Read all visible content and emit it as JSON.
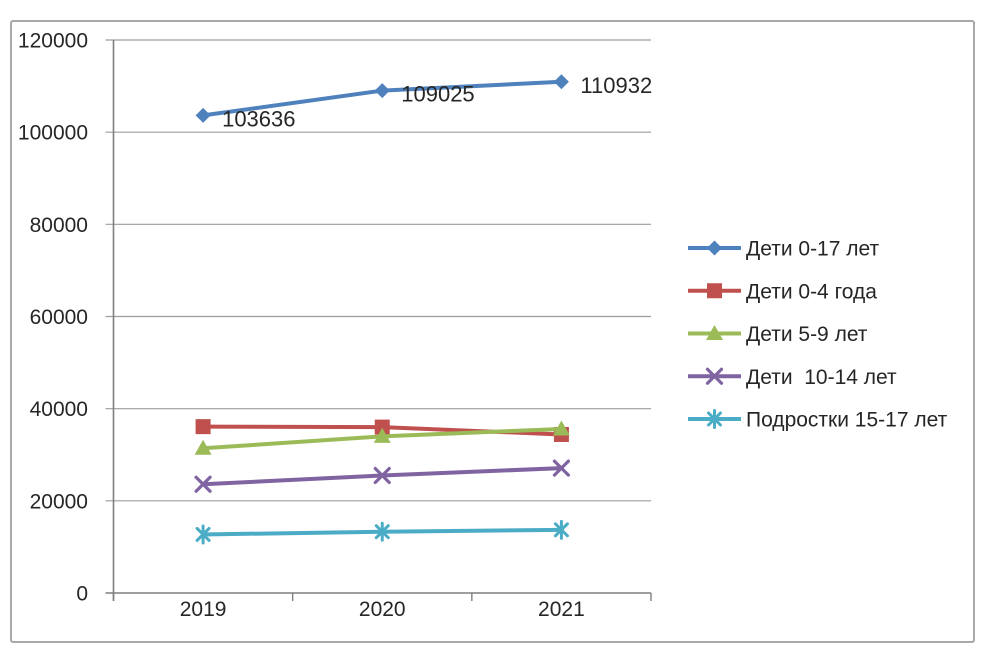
{
  "chart_data": {
    "type": "line",
    "title": "",
    "xlabel": "",
    "ylabel": "",
    "x": [
      "2019",
      "2020",
      "2021"
    ],
    "series": [
      {
        "name": "Дети 0-17 лет",
        "values": [
          103636,
          109025,
          110932
        ],
        "color": "#4F81BD",
        "marker": "diamond",
        "data_labels": [
          "103636",
          "109025",
          "110932"
        ]
      },
      {
        "name": "Дети 0-4 года",
        "values": [
          36100,
          36000,
          34400
        ],
        "color": "#C0504D",
        "marker": "square"
      },
      {
        "name": "Дети 5-9 лет",
        "values": [
          31400,
          34000,
          35600
        ],
        "color": "#9BBB59",
        "marker": "triangle"
      },
      {
        "name": "Дети  10-14 лет",
        "values": [
          23600,
          25500,
          27100
        ],
        "color": "#8064A2",
        "marker": "x"
      },
      {
        "name": "Подростки 15-17 лет",
        "values": [
          12700,
          13300,
          13700
        ],
        "color": "#4BACC6",
        "marker": "asterisk"
      }
    ],
    "ylim": [
      0,
      120000
    ],
    "ytick_step": 20000,
    "yticks": [
      "120000",
      "100000",
      "80000",
      "60000",
      "40000",
      "20000",
      "0"
    ],
    "grid": true,
    "legend_position": "right",
    "colors": {
      "frame": "#a8a8a8",
      "gridline": "#9d9d9d",
      "axis": "#7f7f7f",
      "text": "#262626",
      "background": "#ffffff"
    }
  }
}
